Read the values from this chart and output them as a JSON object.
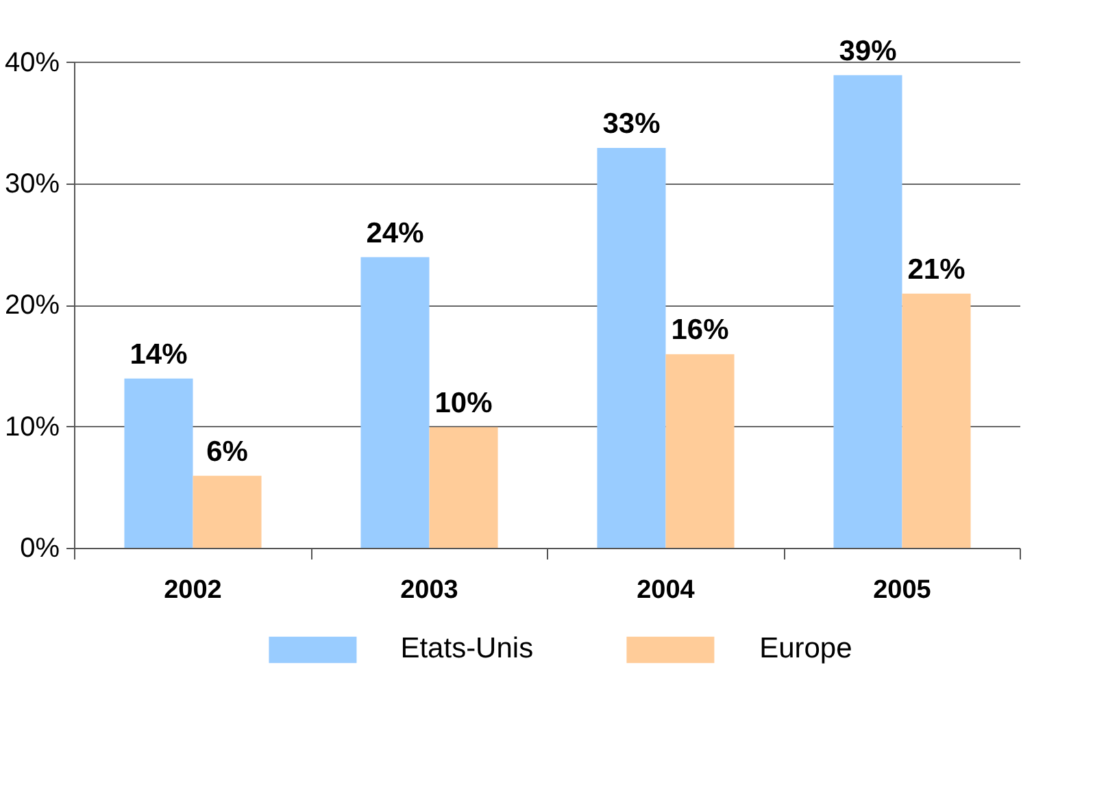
{
  "chart_data": {
    "type": "bar",
    "categories": [
      "2002",
      "2003",
      "2004",
      "2005"
    ],
    "series": [
      {
        "name": "Etats-Unis",
        "color": "#99ccff",
        "values": [
          14,
          24,
          33,
          39
        ],
        "value_labels": [
          "14%",
          "24%",
          "33%",
          "39%"
        ]
      },
      {
        "name": "Europe",
        "color": "#ffcc99",
        "values": [
          6,
          10,
          16,
          21
        ],
        "value_labels": [
          "6%",
          "10%",
          "16%",
          "21%"
        ]
      }
    ],
    "ylim": [
      0,
      40
    ],
    "yticks": [
      {
        "value": 0,
        "label": "0%"
      },
      {
        "value": 10,
        "label": "10%"
      },
      {
        "value": 20,
        "label": "20%"
      },
      {
        "value": 30,
        "label": "30%"
      },
      {
        "value": 40,
        "label": "40%"
      }
    ],
    "grid": "y",
    "legend": "bottom"
  }
}
